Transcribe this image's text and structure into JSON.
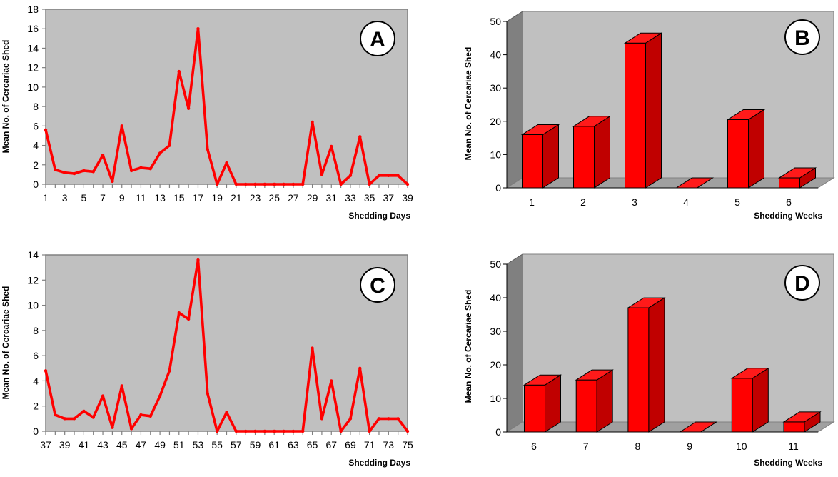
{
  "colors": {
    "series": "#ff0000",
    "plot_bg": "#c0c0c0",
    "axis": "#808080"
  },
  "chart_data": [
    {
      "id": "A",
      "type": "line",
      "panel_label": "A",
      "xlabel": "Shedding Days",
      "ylabel": "Mean No. of Cercariae Shed",
      "ylim": [
        0,
        18
      ],
      "yticks": [
        0,
        2,
        4,
        6,
        8,
        10,
        12,
        14,
        16,
        18
      ],
      "x": [
        1,
        2,
        3,
        4,
        5,
        6,
        7,
        8,
        9,
        10,
        11,
        12,
        13,
        14,
        15,
        16,
        17,
        18,
        19,
        20,
        21,
        22,
        23,
        24,
        25,
        26,
        27,
        28,
        29,
        30,
        31,
        32,
        33,
        34,
        35,
        36,
        37,
        38,
        39
      ],
      "xtick_labels": [
        "1",
        "3",
        "5",
        "7",
        "9",
        "11",
        "13",
        "15",
        "17",
        "19",
        "21",
        "23",
        "25",
        "27",
        "29",
        "31",
        "33",
        "35",
        "37",
        "39"
      ],
      "values": [
        5.6,
        1.5,
        1.2,
        1.1,
        1.4,
        1.3,
        3.0,
        0.3,
        6.0,
        1.4,
        1.7,
        1.6,
        3.2,
        4.0,
        11.6,
        7.8,
        16.0,
        3.6,
        0,
        2.2,
        0,
        0,
        0,
        0,
        0,
        0,
        0,
        0,
        6.4,
        1.0,
        3.9,
        0,
        0.9,
        4.9,
        0,
        0.9,
        0.9,
        0.9,
        0
      ]
    },
    {
      "id": "B",
      "type": "bar",
      "panel_label": "B",
      "xlabel": "Shedding Weeks",
      "ylabel": "Mean No. of Cercariae Shed",
      "ylim": [
        0,
        50
      ],
      "yticks": [
        0,
        10,
        20,
        30,
        40,
        50
      ],
      "categories": [
        "1",
        "2",
        "3",
        "4",
        "5",
        "6"
      ],
      "values": [
        16,
        18.5,
        43.5,
        0,
        20.5,
        3
      ]
    },
    {
      "id": "C",
      "type": "line",
      "panel_label": "C",
      "xlabel": "Shedding Days",
      "ylabel": "Mean No. of Cercariae Shed",
      "ylim": [
        0,
        14
      ],
      "yticks": [
        0,
        2,
        4,
        6,
        8,
        10,
        12,
        14
      ],
      "x": [
        37,
        38,
        39,
        40,
        41,
        42,
        43,
        44,
        45,
        46,
        47,
        48,
        49,
        50,
        51,
        52,
        53,
        54,
        55,
        56,
        57,
        58,
        59,
        60,
        61,
        62,
        63,
        64,
        65,
        66,
        67,
        68,
        69,
        70,
        71,
        72,
        73,
        74,
        75
      ],
      "xtick_labels": [
        "37",
        "39",
        "41",
        "43",
        "45",
        "47",
        "49",
        "51",
        "53",
        "55",
        "57",
        "59",
        "61",
        "63",
        "65",
        "67",
        "69",
        "71",
        "73",
        "75"
      ],
      "values": [
        4.8,
        1.3,
        1.0,
        1.0,
        1.6,
        1.1,
        2.8,
        0.3,
        3.6,
        0.2,
        1.3,
        1.2,
        2.8,
        4.8,
        9.4,
        8.9,
        13.6,
        3.0,
        0,
        1.5,
        0,
        0,
        0,
        0,
        0,
        0,
        0,
        0,
        6.6,
        1.0,
        4.0,
        0,
        1.0,
        5.0,
        0,
        1.0,
        1.0,
        1.0,
        0
      ]
    },
    {
      "id": "D",
      "type": "bar",
      "panel_label": "D",
      "xlabel": "Shedding Weeks",
      "ylabel": "Mean No. of Cercariae Shed",
      "ylim": [
        0,
        50
      ],
      "yticks": [
        0,
        10,
        20,
        30,
        40,
        50
      ],
      "categories": [
        "6",
        "7",
        "8",
        "9",
        "10",
        "11"
      ],
      "values": [
        14,
        15.5,
        37,
        0,
        16,
        3
      ]
    }
  ]
}
